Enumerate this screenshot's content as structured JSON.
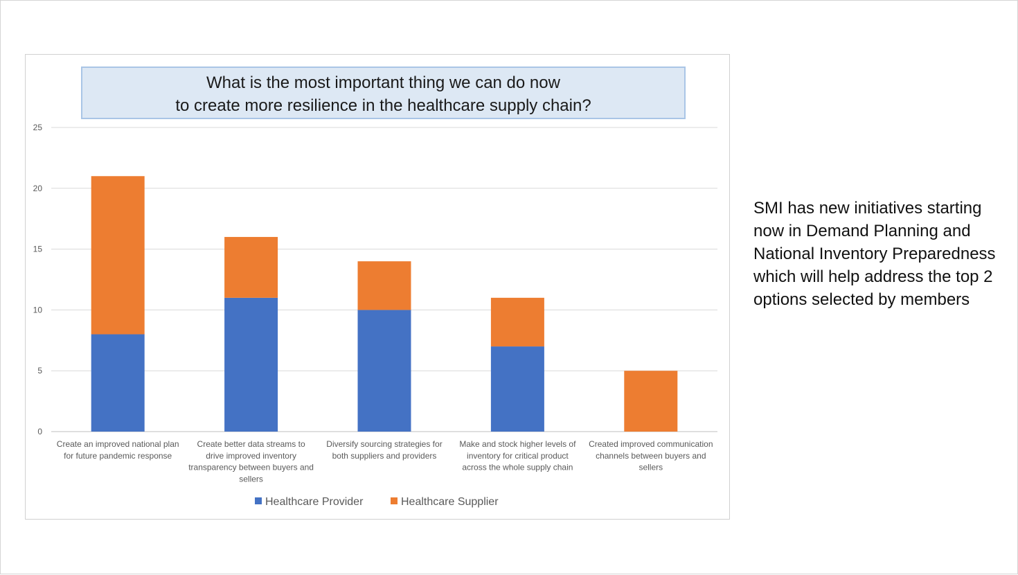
{
  "chart_data": {
    "type": "bar",
    "stacked": true,
    "title_lines": [
      "What is the most important thing we can do now",
      "to create more resilience in the healthcare supply chain?"
    ],
    "categories": [
      [
        "Create an improved national plan",
        "for future pandemic response"
      ],
      [
        "Create better data streams to",
        "drive improved inventory",
        "transparency between buyers and",
        "sellers"
      ],
      [
        "Diversify sourcing strategies for",
        "both suppliers and providers"
      ],
      [
        "Make and stock higher levels of",
        "inventory for critical product",
        "across the whole supply chain"
      ],
      [
        "Created improved communication",
        "channels between buyers and",
        "sellers"
      ]
    ],
    "series": [
      {
        "name": "Healthcare Provider",
        "color": "#4472c4",
        "values": [
          8,
          11,
          10,
          7,
          0
        ]
      },
      {
        "name": "Healthcare Supplier",
        "color": "#ed7d31",
        "values": [
          13,
          5,
          4,
          4,
          5
        ]
      }
    ],
    "ylim": [
      0,
      25
    ],
    "yticks": [
      "0",
      "5",
      "10",
      "15",
      "20",
      "25"
    ],
    "grid": true,
    "legend_position": "bottom"
  },
  "side_note": "SMI has new initiatives starting now in Demand Planning and National Inventory Preparedness which will help address the top 2 options selected by members"
}
